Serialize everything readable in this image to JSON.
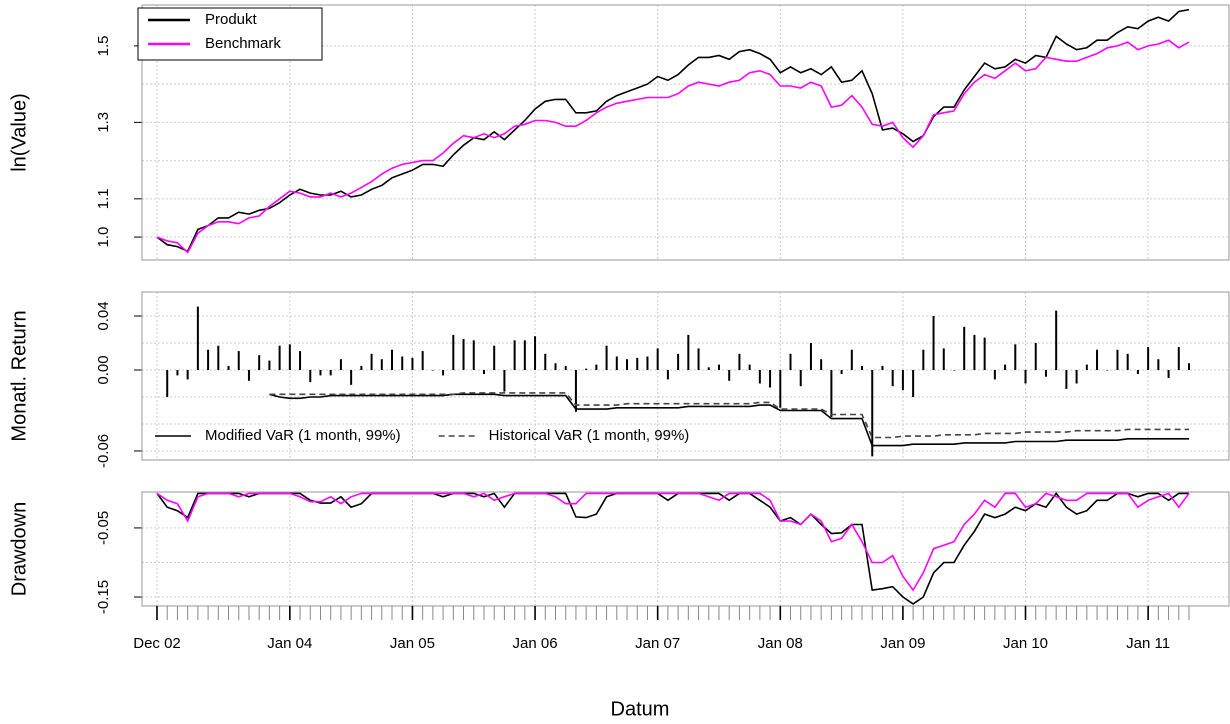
{
  "chart_data": [
    {
      "type": "line",
      "ylabel": "ln(Value)",
      "ylim": [
        0.94,
        1.607
      ],
      "yticks": [
        {
          "value": 1.0,
          "label": "1.0"
        },
        1.1,
        1.3,
        1.5
      ],
      "minor_grid": [
        1.2,
        1.4
      ],
      "grid": true,
      "legend": "topleft",
      "legend_box": true,
      "series": [
        {
          "name": "Produkt",
          "color": "#000000",
          "values": [
            1.0,
            0.98,
            0.975,
            0.963,
            1.02,
            1.03,
            1.05,
            1.05,
            1.065,
            1.06,
            1.07,
            1.075,
            1.09,
            1.11,
            1.125,
            1.115,
            1.11,
            1.11,
            1.12,
            1.105,
            1.11,
            1.125,
            1.135,
            1.155,
            1.165,
            1.175,
            1.19,
            1.19,
            1.185,
            1.215,
            1.24,
            1.26,
            1.255,
            1.275,
            1.255,
            1.28,
            1.305,
            1.335,
            1.355,
            1.36,
            1.36,
            1.325,
            1.325,
            1.33,
            1.355,
            1.37,
            1.38,
            1.39,
            1.4,
            1.42,
            1.41,
            1.425,
            1.45,
            1.47,
            1.47,
            1.475,
            1.465,
            1.485,
            1.49,
            1.48,
            1.465,
            1.43,
            1.445,
            1.43,
            1.44,
            1.425,
            1.445,
            1.405,
            1.41,
            1.435,
            1.375,
            1.28,
            1.285,
            1.27,
            1.25,
            1.265,
            1.315,
            1.34,
            1.34,
            1.385,
            1.42,
            1.455,
            1.44,
            1.445,
            1.465,
            1.455,
            1.475,
            1.47,
            1.525,
            1.505,
            1.49,
            1.495,
            1.515,
            1.515,
            1.535,
            1.55,
            1.545,
            1.565,
            1.575,
            1.565,
            1.59,
            1.595
          ]
        },
        {
          "name": "Benchmark",
          "color": "#ff00ff",
          "values": [
            1.0,
            0.99,
            0.985,
            0.96,
            1.01,
            1.03,
            1.04,
            1.04,
            1.035,
            1.05,
            1.055,
            1.08,
            1.1,
            1.12,
            1.115,
            1.105,
            1.105,
            1.115,
            1.105,
            1.115,
            1.13,
            1.145,
            1.165,
            1.18,
            1.19,
            1.195,
            1.2,
            1.2,
            1.22,
            1.245,
            1.265,
            1.26,
            1.27,
            1.26,
            1.27,
            1.29,
            1.295,
            1.305,
            1.305,
            1.3,
            1.29,
            1.29,
            1.305,
            1.325,
            1.34,
            1.35,
            1.355,
            1.36,
            1.365,
            1.365,
            1.365,
            1.375,
            1.395,
            1.405,
            1.4,
            1.395,
            1.405,
            1.41,
            1.43,
            1.435,
            1.425,
            1.395,
            1.395,
            1.39,
            1.405,
            1.395,
            1.34,
            1.345,
            1.37,
            1.34,
            1.295,
            1.29,
            1.3,
            1.26,
            1.235,
            1.265,
            1.32,
            1.325,
            1.33,
            1.375,
            1.405,
            1.425,
            1.415,
            1.435,
            1.455,
            1.435,
            1.44,
            1.47,
            1.465,
            1.46,
            1.46,
            1.47,
            1.48,
            1.495,
            1.5,
            1.51,
            1.49,
            1.5,
            1.505,
            1.515,
            1.495,
            1.51
          ]
        }
      ]
    },
    {
      "type": "bar",
      "ylabel": "Monatl. Return",
      "ylim": [
        -0.0667,
        0.0578
      ],
      "yticks": [
        0.04,
        {
          "value": 0,
          "label": "0.00"
        },
        -0.06
      ],
      "minor_grid": [
        0.02,
        -0.02,
        -0.04
      ],
      "grid": true,
      "legend": "bottomleft",
      "legend_box": false,
      "color": "#000000",
      "values": [
        null,
        -0.02,
        -0.004,
        -0.007,
        0.047,
        0.015,
        0.018,
        0.003,
        0.014,
        -0.008,
        0.011,
        0.007,
        0.018,
        0.019,
        0.014,
        -0.009,
        -0.004,
        -0.004,
        0.008,
        -0.011,
        0.003,
        0.012,
        0.008,
        0.015,
        0.01,
        0.009,
        0.014,
        0.0,
        -0.004,
        0.026,
        0.023,
        0.022,
        -0.003,
        0.018,
        -0.016,
        0.022,
        0.022,
        0.025,
        0.012,
        0.005,
        0.003,
        -0.031,
        0.001,
        0.004,
        0.018,
        0.01,
        0.008,
        0.009,
        0.01,
        0.016,
        -0.007,
        0.012,
        0.026,
        0.016,
        0.002,
        0.004,
        -0.008,
        0.012,
        0.004,
        -0.01,
        -0.013,
        -0.028,
        0.012,
        -0.012,
        0.02,
        0.008,
        -0.035,
        -0.003,
        0.015,
        0.003,
        -0.064,
        0.003,
        -0.012,
        -0.015,
        -0.02,
        0.015,
        0.04,
        0.016,
        0.0,
        0.032,
        0.026,
        0.024,
        -0.007,
        0.004,
        0.019,
        -0.01,
        0.02,
        -0.005,
        0.044,
        -0.014,
        -0.01,
        0.004,
        0.015,
        0.0,
        0.015,
        0.012,
        -0.003,
        0.017,
        0.008,
        -0.006,
        0.017,
        0.005
      ],
      "series": [
        {
          "name": "Modified VaR (1 month, 99%)",
          "color": "#000000",
          "dash": "solid",
          "values": [
            null,
            null,
            null,
            null,
            null,
            null,
            null,
            null,
            null,
            null,
            null,
            -0.018,
            -0.02,
            -0.021,
            -0.021,
            -0.02,
            -0.02,
            -0.019,
            -0.019,
            -0.019,
            -0.019,
            -0.019,
            -0.019,
            -0.019,
            -0.019,
            -0.019,
            -0.019,
            -0.019,
            -0.019,
            -0.018,
            -0.018,
            -0.018,
            -0.018,
            -0.018,
            -0.019,
            -0.019,
            -0.019,
            -0.019,
            -0.019,
            -0.019,
            -0.019,
            -0.029,
            -0.029,
            -0.029,
            -0.029,
            -0.028,
            -0.028,
            -0.028,
            -0.028,
            -0.028,
            -0.028,
            -0.028,
            -0.027,
            -0.027,
            -0.027,
            -0.027,
            -0.027,
            -0.027,
            -0.027,
            -0.026,
            -0.026,
            -0.03,
            -0.03,
            -0.03,
            -0.03,
            -0.03,
            -0.036,
            -0.036,
            -0.036,
            -0.036,
            -0.056,
            -0.056,
            -0.056,
            -0.056,
            -0.055,
            -0.055,
            -0.055,
            -0.055,
            -0.055,
            -0.054,
            -0.054,
            -0.054,
            -0.054,
            -0.054,
            -0.053,
            -0.053,
            -0.053,
            -0.053,
            -0.053,
            -0.052,
            -0.052,
            -0.052,
            -0.052,
            -0.052,
            -0.052,
            -0.051,
            -0.051,
            -0.051,
            -0.051,
            -0.051,
            -0.051,
            -0.051
          ]
        },
        {
          "name": "Historical VaR (1 month, 99%)",
          "color": "#444444",
          "dash": "dashed",
          "values": [
            null,
            null,
            null,
            null,
            null,
            null,
            null,
            null,
            null,
            null,
            null,
            -0.018,
            -0.018,
            -0.018,
            -0.018,
            -0.018,
            -0.018,
            -0.018,
            -0.018,
            -0.018,
            -0.018,
            -0.018,
            -0.018,
            -0.018,
            -0.018,
            -0.018,
            -0.018,
            -0.018,
            -0.018,
            -0.018,
            -0.017,
            -0.017,
            -0.017,
            -0.017,
            -0.017,
            -0.017,
            -0.017,
            -0.017,
            -0.017,
            -0.017,
            -0.017,
            -0.026,
            -0.026,
            -0.026,
            -0.026,
            -0.026,
            -0.025,
            -0.025,
            -0.025,
            -0.025,
            -0.025,
            -0.025,
            -0.025,
            -0.025,
            -0.025,
            -0.025,
            -0.025,
            -0.025,
            -0.025,
            -0.024,
            -0.024,
            -0.029,
            -0.029,
            -0.029,
            -0.029,
            -0.029,
            -0.033,
            -0.033,
            -0.033,
            -0.033,
            -0.05,
            -0.05,
            -0.05,
            -0.049,
            -0.049,
            -0.049,
            -0.049,
            -0.048,
            -0.048,
            -0.048,
            -0.048,
            -0.047,
            -0.047,
            -0.047,
            -0.047,
            -0.046,
            -0.046,
            -0.046,
            -0.046,
            -0.046,
            -0.045,
            -0.045,
            -0.045,
            -0.045,
            -0.045,
            -0.044,
            -0.044,
            -0.044,
            -0.044,
            -0.044,
            -0.044,
            -0.044
          ]
        }
      ]
    },
    {
      "type": "line",
      "ylabel": "Drawdown",
      "xlabel": "Datum",
      "ylim": [
        -0.163,
        0.002
      ],
      "yticks": [
        -0.05,
        -0.15
      ],
      "minor_grid": [
        -0.1
      ],
      "grid": true,
      "x": [
        "2002-12",
        "2003-01",
        "2003-02",
        "2003-03",
        "2003-04",
        "2003-05",
        "2003-06",
        "2003-07",
        "2003-08",
        "2003-09",
        "2003-10",
        "2003-11",
        "2003-12",
        "2004-01",
        "2004-02",
        "2004-03",
        "2004-04",
        "2004-05",
        "2004-06",
        "2004-07",
        "2004-08",
        "2004-09",
        "2004-10",
        "2004-11",
        "2004-12",
        "2005-01",
        "2005-02",
        "2005-03",
        "2005-04",
        "2005-05",
        "2005-06",
        "2005-07",
        "2005-08",
        "2005-09",
        "2005-10",
        "2005-11",
        "2005-12",
        "2006-01",
        "2006-02",
        "2006-03",
        "2006-04",
        "2006-05",
        "2006-06",
        "2006-07",
        "2006-08",
        "2006-09",
        "2006-10",
        "2006-11",
        "2006-12",
        "2007-01",
        "2007-02",
        "2007-03",
        "2007-04",
        "2007-05",
        "2007-06",
        "2007-07",
        "2007-08",
        "2007-09",
        "2007-10",
        "2007-11",
        "2007-12",
        "2008-01",
        "2008-02",
        "2008-03",
        "2008-04",
        "2008-05",
        "2008-06",
        "2008-07",
        "2008-08",
        "2008-09",
        "2008-10",
        "2008-11",
        "2008-12",
        "2009-01",
        "2009-02",
        "2009-03",
        "2009-04",
        "2009-05",
        "2009-06",
        "2009-07",
        "2009-08",
        "2009-09",
        "2009-10",
        "2009-11",
        "2009-12",
        "2010-01",
        "2010-02",
        "2010-03",
        "2010-04",
        "2010-05",
        "2010-06",
        "2010-07",
        "2010-08",
        "2010-09",
        "2010-10",
        "2010-11",
        "2010-12",
        "2011-01",
        "2011-02",
        "2011-03",
        "2011-04",
        "2011-05"
      ],
      "xticks": [
        {
          "value": "2002-12",
          "label": "Dec 02"
        },
        {
          "value": "2004-01",
          "label": "Jan 04"
        },
        {
          "value": "2005-01",
          "label": "Jan 05"
        },
        {
          "value": "2006-01",
          "label": "Jan 06"
        },
        {
          "value": "2007-01",
          "label": "Jan 07"
        },
        {
          "value": "2008-01",
          "label": "Jan 08"
        },
        {
          "value": "2009-01",
          "label": "Jan 09"
        },
        {
          "value": "2010-01",
          "label": "Jan 10"
        },
        {
          "value": "2011-01",
          "label": "Jan 11"
        }
      ],
      "series": [
        {
          "color": "#000000",
          "values": [
            0,
            -0.02,
            -0.025,
            -0.035,
            0,
            0,
            0,
            0,
            0,
            -0.005,
            0,
            0,
            0,
            0,
            0,
            -0.01,
            -0.014,
            -0.014,
            -0.005,
            -0.02,
            -0.015,
            0,
            0,
            0,
            0,
            0,
            0,
            0,
            -0.005,
            0,
            0,
            0,
            -0.005,
            0,
            -0.02,
            0,
            0,
            0,
            0,
            0,
            0,
            -0.034,
            -0.035,
            -0.03,
            -0.005,
            0,
            0,
            0,
            0,
            0,
            -0.01,
            0,
            0,
            0,
            0,
            0,
            -0.01,
            0,
            0,
            -0.01,
            -0.02,
            -0.04,
            -0.035,
            -0.045,
            -0.03,
            -0.045,
            -0.058,
            -0.057,
            -0.045,
            -0.045,
            -0.14,
            -0.138,
            -0.135,
            -0.15,
            -0.16,
            -0.15,
            -0.115,
            -0.1,
            -0.1,
            -0.075,
            -0.055,
            -0.03,
            -0.035,
            -0.03,
            -0.02,
            -0.025,
            -0.015,
            -0.02,
            0,
            -0.02,
            -0.03,
            -0.025,
            -0.01,
            -0.01,
            0,
            0,
            -0.005,
            0,
            0,
            -0.01,
            0,
            0
          ]
        },
        {
          "color": "#ff00ff",
          "values": [
            0,
            -0.01,
            -0.015,
            -0.04,
            -0.005,
            0,
            0,
            0,
            -0.005,
            0,
            0,
            0,
            0,
            0,
            -0.005,
            -0.012,
            -0.012,
            -0.005,
            -0.015,
            -0.005,
            0,
            0,
            0,
            0,
            0,
            0,
            0,
            0,
            0,
            0,
            0,
            -0.005,
            0,
            -0.01,
            -0.005,
            0,
            0,
            0,
            0,
            -0.005,
            -0.015,
            -0.015,
            0,
            0,
            0,
            0,
            0,
            0,
            0,
            0,
            0,
            0,
            0,
            0,
            -0.005,
            -0.01,
            0,
            0,
            0,
            0,
            -0.01,
            -0.04,
            -0.04,
            -0.045,
            -0.03,
            -0.04,
            -0.07,
            -0.065,
            -0.045,
            -0.07,
            -0.1,
            -0.1,
            -0.09,
            -0.12,
            -0.14,
            -0.115,
            -0.08,
            -0.075,
            -0.07,
            -0.045,
            -0.03,
            -0.01,
            -0.02,
            0,
            0,
            -0.02,
            -0.015,
            0,
            -0.005,
            -0.01,
            -0.01,
            0,
            0,
            0,
            0,
            0,
            -0.02,
            -0.01,
            -0.005,
            0,
            -0.02,
            0
          ]
        }
      ]
    }
  ]
}
